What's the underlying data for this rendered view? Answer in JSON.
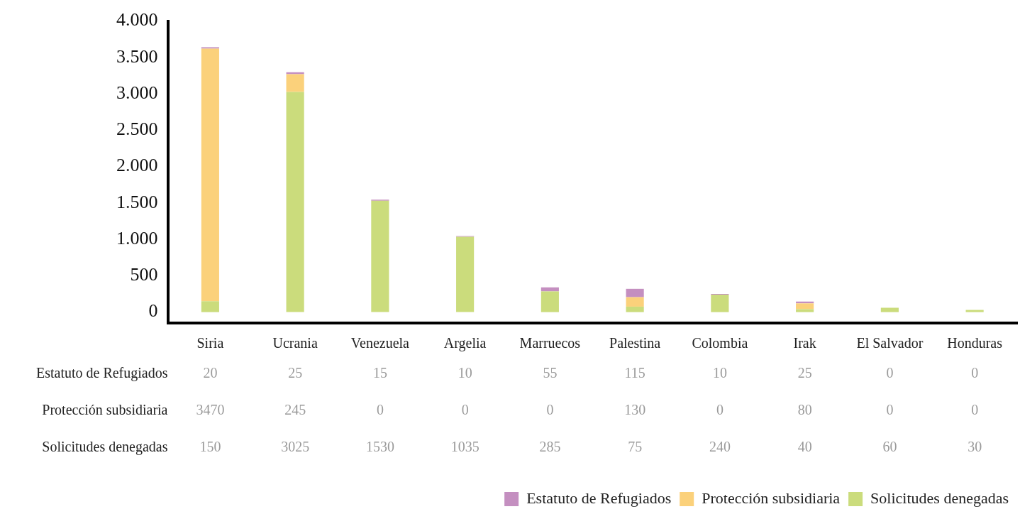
{
  "chart_data": {
    "type": "bar",
    "stacked": true,
    "categories": [
      "Siria",
      "Ucrania",
      "Venezuela",
      "Argelia",
      "Marruecos",
      "Palestina",
      "Colombia",
      "Irak",
      "El Salvador",
      "Honduras"
    ],
    "series": [
      {
        "name": "Solicitudes denegadas",
        "color": "#cbdc7c",
        "values": [
          150,
          3025,
          1530,
          1035,
          285,
          75,
          240,
          40,
          60,
          30
        ]
      },
      {
        "name": "Protección subsidiaria",
        "color": "#fbd17b",
        "values": [
          3470,
          245,
          0,
          0,
          0,
          130,
          0,
          80,
          0,
          0
        ]
      },
      {
        "name": "Estatuto de Refugiados",
        "color": "#c48fc0",
        "values": [
          20,
          25,
          15,
          10,
          55,
          115,
          10,
          25,
          0,
          0
        ]
      }
    ],
    "ylim": [
      -150,
      4000
    ],
    "yticks": [
      0,
      {
        "value": 500,
        "label": "500"
      },
      {
        "value": 1000,
        "label": "1.000"
      },
      {
        "value": 1500,
        "label": "1.500"
      },
      {
        "value": 2000,
        "label": "2.000"
      },
      {
        "value": 2500,
        "label": "2.500"
      },
      {
        "value": 3000,
        "label": "3.000"
      },
      {
        "value": 3500,
        "label": "3.500"
      },
      {
        "value": 4000,
        "label": "4.000"
      }
    ],
    "data_labels": true,
    "grid": false,
    "legend": "bottom right"
  }
}
